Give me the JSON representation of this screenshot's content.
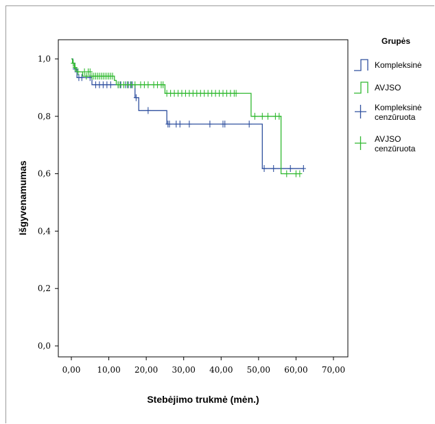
{
  "chart_data": {
    "type": "line",
    "title": "",
    "xlabel": "Stebėjimo trukmė (mėn.)",
    "ylabel": "Išgyvenamumas",
    "xlim": [
      0,
      70
    ],
    "ylim": [
      0,
      1
    ],
    "x_ticks": [
      "0,00",
      "10,00",
      "20,00",
      "30,00",
      "40,00",
      "50,00",
      "60,00",
      "70,00"
    ],
    "x_tick_values": [
      0,
      10,
      20,
      30,
      40,
      50,
      60,
      70
    ],
    "y_ticks": [
      "0,0",
      "0,2",
      "0,4",
      "0,6",
      "0,8",
      "1,0"
    ],
    "y_tick_values": [
      0,
      0.2,
      0.4,
      0.6,
      0.8,
      1.0
    ],
    "grid": false,
    "legend": {
      "title": "Grupės",
      "position": "right",
      "entries": [
        {
          "label": "Kompleksinė",
          "kind": "step",
          "color": "#2e4f9e"
        },
        {
          "label": "AVJSO",
          "kind": "step",
          "color": "#2eb82e"
        },
        {
          "label": "Kompleksinė cenzūruota",
          "lines": [
            "Kompleksinė",
            "cenzūruota"
          ],
          "kind": "censor",
          "color": "#2e4f9e"
        },
        {
          "label": "AVJSO cenzūruota",
          "lines": [
            "AVJSO",
            "cenzūruota"
          ],
          "kind": "censor",
          "color": "#2eb82e"
        }
      ]
    },
    "series": [
      {
        "name": "Kompleksinė",
        "color": "#2e4f9e",
        "steps": [
          [
            0,
            1.0
          ],
          [
            0.4,
            0.985
          ],
          [
            0.9,
            0.965
          ],
          [
            1.5,
            0.935
          ],
          [
            5.5,
            0.91
          ],
          [
            17,
            0.865
          ],
          [
            18,
            0.82
          ],
          [
            25.5,
            0.773
          ],
          [
            51,
            0.618
          ],
          [
            62,
            0.618
          ]
        ],
        "censored": [
          [
            1.0,
            0.965
          ],
          [
            2.0,
            0.935
          ],
          [
            2.8,
            0.935
          ],
          [
            5.0,
            0.935
          ],
          [
            6.5,
            0.91
          ],
          [
            7.5,
            0.91
          ],
          [
            8.5,
            0.91
          ],
          [
            9.5,
            0.91
          ],
          [
            10.5,
            0.91
          ],
          [
            12.5,
            0.91
          ],
          [
            13.2,
            0.91
          ],
          [
            14.5,
            0.91
          ],
          [
            15.2,
            0.91
          ],
          [
            15.8,
            0.91
          ],
          [
            16.3,
            0.91
          ],
          [
            17.3,
            0.865
          ],
          [
            20.5,
            0.82
          ],
          [
            25.8,
            0.773
          ],
          [
            26.2,
            0.773
          ],
          [
            28.0,
            0.773
          ],
          [
            29.0,
            0.773
          ],
          [
            31.5,
            0.773
          ],
          [
            37.0,
            0.773
          ],
          [
            40.5,
            0.773
          ],
          [
            41.0,
            0.773
          ],
          [
            47.5,
            0.773
          ],
          [
            51.5,
            0.618
          ],
          [
            54.0,
            0.618
          ],
          [
            58.5,
            0.618
          ],
          [
            62.0,
            0.618
          ]
        ]
      },
      {
        "name": "AVJSO",
        "color": "#2eb82e",
        "steps": [
          [
            0,
            1.0
          ],
          [
            0.3,
            0.985
          ],
          [
            0.8,
            0.97
          ],
          [
            1.3,
            0.955
          ],
          [
            3.0,
            0.94
          ],
          [
            11.5,
            0.925
          ],
          [
            12.0,
            0.91
          ],
          [
            25.0,
            0.88
          ],
          [
            48.0,
            0.8
          ],
          [
            56.0,
            0.6
          ],
          [
            61.0,
            0.6
          ]
        ],
        "censored": [
          [
            0.5,
            0.985
          ],
          [
            1.0,
            0.97
          ],
          [
            1.8,
            0.955
          ],
          [
            3.5,
            0.955
          ],
          [
            4.5,
            0.955
          ],
          [
            5.0,
            0.955
          ],
          [
            4.0,
            0.94
          ],
          [
            5.5,
            0.94
          ],
          [
            6.0,
            0.94
          ],
          [
            6.5,
            0.94
          ],
          [
            7.0,
            0.94
          ],
          [
            7.5,
            0.94
          ],
          [
            8.0,
            0.94
          ],
          [
            8.5,
            0.94
          ],
          [
            9.0,
            0.94
          ],
          [
            9.5,
            0.94
          ],
          [
            10.0,
            0.94
          ],
          [
            10.5,
            0.94
          ],
          [
            11.0,
            0.94
          ],
          [
            12.5,
            0.91
          ],
          [
            13.0,
            0.91
          ],
          [
            14.0,
            0.91
          ],
          [
            15.0,
            0.91
          ],
          [
            16.0,
            0.91
          ],
          [
            17.0,
            0.91
          ],
          [
            18.5,
            0.91
          ],
          [
            19.5,
            0.91
          ],
          [
            20.5,
            0.91
          ],
          [
            22.0,
            0.91
          ],
          [
            23.0,
            0.91
          ],
          [
            24.0,
            0.91
          ],
          [
            24.5,
            0.91
          ],
          [
            25.5,
            0.88
          ],
          [
            26.5,
            0.88
          ],
          [
            27.5,
            0.88
          ],
          [
            28.5,
            0.88
          ],
          [
            29.5,
            0.88
          ],
          [
            30.5,
            0.88
          ],
          [
            31.5,
            0.88
          ],
          [
            32.5,
            0.88
          ],
          [
            33.5,
            0.88
          ],
          [
            34.5,
            0.88
          ],
          [
            35.5,
            0.88
          ],
          [
            36.5,
            0.88
          ],
          [
            37.5,
            0.88
          ],
          [
            38.5,
            0.88
          ],
          [
            39.5,
            0.88
          ],
          [
            40.5,
            0.88
          ],
          [
            41.5,
            0.88
          ],
          [
            42.5,
            0.88
          ],
          [
            43.5,
            0.88
          ],
          [
            44.0,
            0.88
          ],
          [
            49.0,
            0.8
          ],
          [
            51.0,
            0.8
          ],
          [
            52.5,
            0.8
          ],
          [
            54.5,
            0.8
          ],
          [
            55.5,
            0.8
          ],
          [
            57.5,
            0.6
          ],
          [
            60.0,
            0.6
          ],
          [
            61.0,
            0.6
          ]
        ]
      }
    ]
  }
}
